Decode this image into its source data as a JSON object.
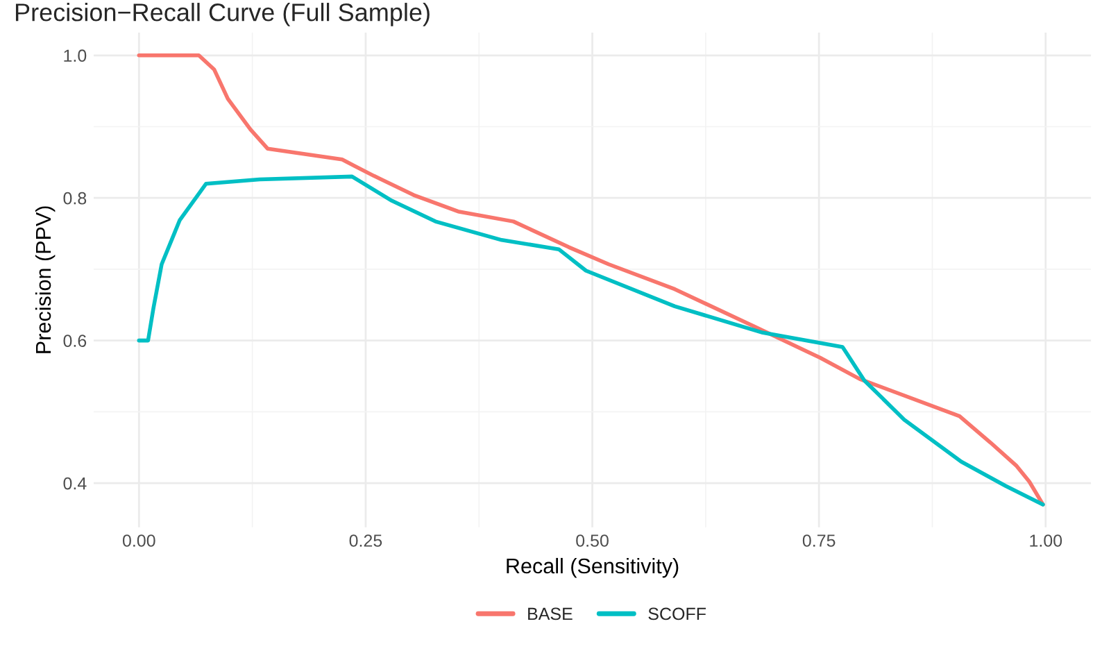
{
  "chart_data": {
    "type": "line",
    "title": "Precision−Recall Curve (Full Sample)",
    "xlabel": "Recall (Sensitivity)",
    "ylabel": "Precision (PPV)",
    "xlim": [
      -0.05,
      1.05
    ],
    "xticks": [
      {
        "value": 0,
        "label": "0.00"
      },
      {
        "value": 0.25,
        "label": "0.25"
      },
      {
        "value": 0.5,
        "label": "0.50"
      },
      {
        "value": 0.75,
        "label": "0.75"
      },
      {
        "value": 1,
        "label": "1.00"
      }
    ],
    "ylim": [
      0.338,
      1.032
    ],
    "yticks": [
      {
        "value": 0.4,
        "label": "0.4"
      },
      {
        "value": 0.6,
        "label": "0.6"
      },
      {
        "value": 0.8,
        "label": "0.8"
      },
      {
        "value": 1.0,
        "label": "1.0"
      }
    ],
    "grid": true,
    "legend": "bottom",
    "marker": "none",
    "line_style": "solid",
    "series": [
      {
        "name": "BASE",
        "color": "#f8766d",
        "x": [
          0,
          0.066,
          0.083,
          0.098,
          0.123,
          0.142,
          0.224,
          0.259,
          0.303,
          0.352,
          0.413,
          0.474,
          0.518,
          0.591,
          0.678,
          0.751,
          0.795,
          0.905,
          0.939,
          0.968,
          0.982,
          0.997
        ],
        "values": [
          1.0,
          1.0,
          0.98,
          0.939,
          0.896,
          0.869,
          0.854,
          0.831,
          0.804,
          0.781,
          0.767,
          0.731,
          0.707,
          0.672,
          0.62,
          0.576,
          0.546,
          0.494,
          0.457,
          0.424,
          0.402,
          0.37
        ]
      },
      {
        "name": "SCOFF",
        "color": "#00bfc4",
        "x": [
          0,
          0.01,
          0.016,
          0.025,
          0.045,
          0.074,
          0.133,
          0.235,
          0.279,
          0.327,
          0.4,
          0.463,
          0.493,
          0.591,
          0.688,
          0.776,
          0.8,
          0.844,
          0.907,
          0.956,
          0.997
        ],
        "values": [
          0.6,
          0.6,
          0.646,
          0.707,
          0.769,
          0.82,
          0.826,
          0.83,
          0.796,
          0.767,
          0.741,
          0.728,
          0.698,
          0.648,
          0.611,
          0.591,
          0.544,
          0.489,
          0.43,
          0.396,
          0.37
        ]
      }
    ]
  }
}
